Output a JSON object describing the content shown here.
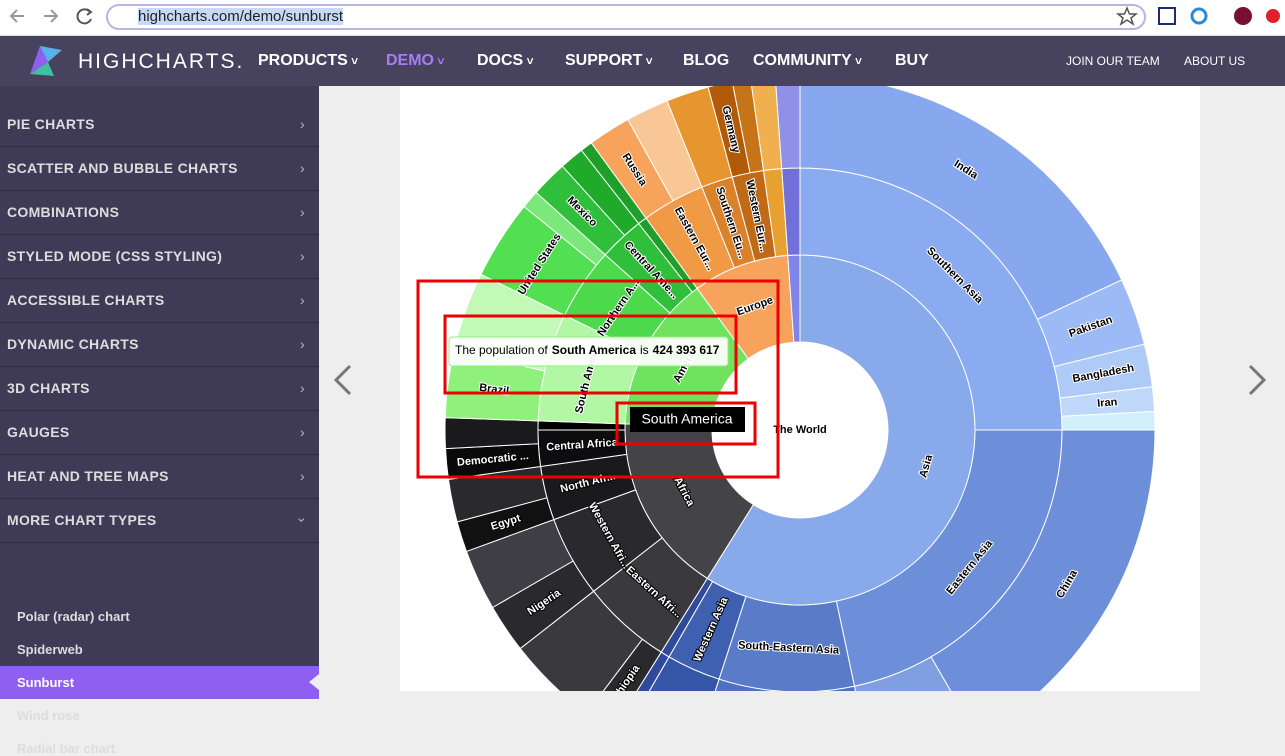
{
  "browser": {
    "url": "highcharts.com/demo/sunburst"
  },
  "nav": {
    "brand": "HIGHCHARTS.",
    "items": [
      "PRODUCTS",
      "DEMO",
      "DOCS",
      "SUPPORT",
      "BLOG",
      "COMMUNITY",
      "BUY"
    ],
    "right": [
      "JOIN OUR TEAM",
      "ABOUT US"
    ]
  },
  "sidebar": {
    "items": [
      "PIE CHARTS",
      "SCATTER AND BUBBLE CHARTS",
      "COMBINATIONS",
      "STYLED MODE (CSS STYLING)",
      "ACCESSIBLE CHARTS",
      "DYNAMIC CHARTS",
      "3D CHARTS",
      "GAUGES",
      "HEAT AND TREE MAPS",
      "MORE CHART TYPES"
    ],
    "subitems": [
      "Polar (radar) chart",
      "Spiderweb",
      "Sunburst",
      "Wind rose",
      "Radial bar chart"
    ]
  },
  "chart": {
    "center": "The World",
    "labels": [
      "Asia",
      "Africa",
      "Ameri",
      "Europe",
      "Southern Asia",
      "Eastern Asia",
      "South-Eastern Asia",
      "Western Asia",
      "Eastern Afri...",
      "Western Afri...",
      "North Afr...",
      "Central Africa",
      "South Ameri...",
      "Northern A...",
      "Central Ame...",
      "Eastern Eur...",
      "Southern Eu...",
      "Western Eur...",
      "India",
      "Pakistan",
      "Bangladesh",
      "Iran",
      "China",
      "Ethiopia",
      "Nigeria",
      "Egypt",
      "Democratic ...",
      "Brazil",
      "United States",
      "Mexico",
      "Russia",
      "Germany"
    ]
  },
  "tooltip": {
    "prefix": "The population of",
    "name": "South America",
    "mid": "is",
    "value": "424 393 617"
  },
  "hover_label": "South America"
}
